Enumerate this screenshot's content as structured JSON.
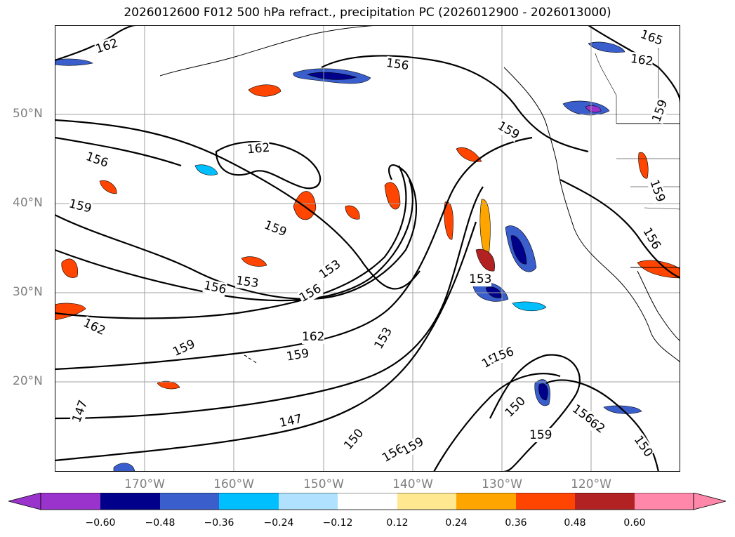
{
  "title": "2026012600 F012 500 hPa refract., precipitation PC (2026012900 - 2026013000)",
  "map": {
    "lat_labels": [
      "50°N",
      "40°N",
      "30°N",
      "20°N"
    ],
    "lon_labels": [
      "170°W",
      "160°W",
      "150°W",
      "140°W",
      "130°W",
      "120°W"
    ],
    "contour_labels": [
      "162",
      "156",
      "156",
      "159",
      "162",
      "159",
      "159",
      "156",
      "153",
      "153",
      "156",
      "162",
      "159",
      "159",
      "162",
      "153",
      "153",
      "150",
      "156",
      "147",
      "147",
      "150",
      "156",
      "159",
      "150",
      "159",
      "162",
      "156",
      "150",
      "165",
      "162",
      "159",
      "159",
      "156"
    ],
    "contour_color": "#000000",
    "grid": true,
    "gridline_color": "#a0a0a0",
    "coastline_color": "#000000"
  },
  "colorbar": {
    "tick_labels": [
      "−0.60",
      "−0.48",
      "−0.36",
      "−0.24",
      "−0.12",
      "0.12",
      "0.24",
      "0.36",
      "0.48",
      "0.60"
    ],
    "bin_colors": [
      "#9933cc",
      "#00008b",
      "#3a5fcd",
      "#00bfff",
      "#b0e2ff",
      "#ffffff",
      "#ffe88f",
      "#ffa500",
      "#ff4500",
      "#b22222",
      "#ff88aa"
    ],
    "extend": "both"
  }
}
